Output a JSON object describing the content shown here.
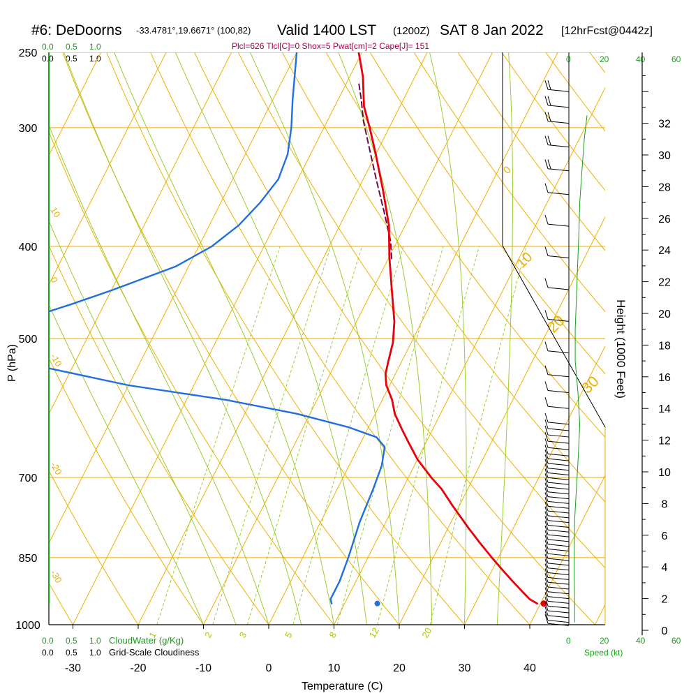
{
  "header": {
    "station": "#6: DeDoorns",
    "coords": "-33.4781°,19.6671° (100,82)",
    "valid": "Valid 1400 LST",
    "zulu": "(1200Z)",
    "date": "SAT 8 Jan 2022",
    "forecast": "[12hrFcst@0442z]",
    "params": "Plcl=626 Tlcl[C]=0 Shox=5 Pwat[cm]=2 Cape[J]= 151"
  },
  "colors": {
    "temperature": "#e8000b",
    "dewpoint": "#1f6fe0",
    "parcel": "#6a0a4a",
    "isobar": "#f0a800",
    "isotherm": "#f0b000",
    "dry_adiabat": "#f0b000",
    "moist_adiabat": "#9acd32",
    "mixing_ratio": "#9acd32",
    "cloud": "#1aa01a",
    "wind_speed": "#1aa01a"
  },
  "legends": {
    "cloud_scale_green": [
      "0.0",
      "0.5",
      "1.0"
    ],
    "cloud_scale_black": [
      "0.0",
      "0.5",
      "1.0"
    ],
    "cloudwater_label": "CloudWater (g/Kg)",
    "cloudiness_label": "Grid-Scale Cloudiness",
    "speed_scale_green_top": [
      "0",
      "20",
      "40",
      "60"
    ],
    "speed_scale_green_bottom": [
      "0",
      "20",
      "40",
      "60"
    ],
    "speed_label": "Speed (kt)"
  },
  "chart_data": {
    "type": "line",
    "subtype": "skew-t log-p sounding",
    "xlabel": "Temperature (C)",
    "ylabel": "P (hPa)",
    "y2label": "Height (1000 Feet)",
    "x_ticks": [
      "-30",
      "-20",
      "-10",
      "0",
      "10",
      "20",
      "30",
      "40"
    ],
    "x_tick_values": [
      -30,
      -20,
      -10,
      0,
      10,
      20,
      30,
      40
    ],
    "pressure_labels": [
      "250",
      "300",
      "400",
      "500",
      "700",
      "850",
      "1000"
    ],
    "pressure_levels": [
      250,
      300,
      400,
      500,
      700,
      850,
      1000
    ],
    "height_labels": [
      "0",
      "2",
      "4",
      "6",
      "8",
      "10",
      "12",
      "14",
      "16",
      "18",
      "20",
      "22",
      "24",
      "26",
      "28",
      "30",
      "32"
    ],
    "height_values": [
      0,
      2,
      4,
      6,
      8,
      10,
      12,
      14,
      16,
      18,
      20,
      22,
      24,
      26,
      28,
      30,
      32
    ],
    "isotherm_labels": [
      "10",
      "0",
      "-10",
      "-20",
      "-30"
    ],
    "adiabat_labels": [
      "0",
      "10",
      "20",
      "30"
    ],
    "mixing_ratio_labels": [
      "1",
      "2",
      "3",
      "5",
      "8",
      "12",
      "20"
    ],
    "mixing_ratio_values": [
      1,
      2,
      3,
      5,
      8,
      12,
      20
    ],
    "series": [
      {
        "name": "temperature",
        "points": [
          [
            39.5,
            950
          ],
          [
            38,
            940
          ],
          [
            36.5,
            925
          ],
          [
            34,
            900
          ],
          [
            32,
            880
          ],
          [
            29,
            850
          ],
          [
            26,
            820
          ],
          [
            23,
            790
          ],
          [
            19,
            750
          ],
          [
            16,
            720
          ],
          [
            13.5,
            700
          ],
          [
            10,
            670
          ],
          [
            7,
            640
          ],
          [
            5,
            620
          ],
          [
            3,
            600
          ],
          [
            1.5,
            580
          ],
          [
            -0.5,
            560
          ],
          [
            -1.5,
            545
          ],
          [
            -2,
            530
          ],
          [
            -2.8,
            505
          ],
          [
            -4.2,
            480
          ],
          [
            -7,
            445
          ],
          [
            -10,
            410
          ],
          [
            -12.5,
            380
          ],
          [
            -16,
            350
          ],
          [
            -20,
            320
          ],
          [
            -23,
            300
          ],
          [
            -25.5,
            285
          ],
          [
            -28,
            265
          ],
          [
            -30.5,
            250
          ]
        ]
      },
      {
        "name": "dewpoint",
        "points": [
          [
            8,
            950
          ],
          [
            7.5,
            940
          ],
          [
            7.5,
            920
          ],
          [
            7.5,
            900
          ],
          [
            7,
            850
          ],
          [
            6,
            780
          ],
          [
            5.5,
            720
          ],
          [
            5,
            680
          ],
          [
            4,
            650
          ],
          [
            2,
            635
          ],
          [
            -3,
            620
          ],
          [
            -12,
            600
          ],
          [
            -24,
            580
          ],
          [
            -40,
            560
          ],
          [
            -55,
            535
          ],
          [
            -62,
            520
          ],
          [
            -62,
            510
          ],
          [
            -67,
            490
          ],
          [
            -62,
            480
          ],
          [
            -55,
            460
          ],
          [
            -50,
            445
          ],
          [
            -42,
            420
          ],
          [
            -38,
            400
          ],
          [
            -35.5,
            380
          ],
          [
            -34,
            360
          ],
          [
            -33,
            340
          ],
          [
            -33.5,
            320
          ],
          [
            -35,
            300
          ],
          [
            -37,
            280
          ],
          [
            -40,
            250
          ]
        ]
      },
      {
        "name": "parcel",
        "points": [
          [
            -9.5,
            412
          ],
          [
            -11,
            395
          ],
          [
            -14,
            370
          ],
          [
            -18,
            340
          ],
          [
            -21.5,
            315
          ],
          [
            -24.5,
            295
          ],
          [
            -26.5,
            280
          ],
          [
            -28,
            270
          ]
        ]
      }
    ],
    "surface_points": {
      "temperature": [
        40.5,
        950
      ],
      "dewpoint": [
        15,
        950
      ]
    },
    "cloud_profile": [],
    "wind_speed_profile": [
      [
        3.2,
        0.5
      ],
      [
        3.2,
        1.5
      ],
      [
        3,
        3
      ],
      [
        3,
        5
      ],
      [
        3.2,
        7
      ],
      [
        4.2,
        9
      ],
      [
        5.2,
        11
      ],
      [
        6,
        13
      ],
      [
        5,
        15
      ],
      [
        3.5,
        17
      ],
      [
        3.5,
        19
      ],
      [
        4.2,
        21
      ],
      [
        4.8,
        23
      ],
      [
        5.5,
        25
      ],
      [
        6,
        27
      ],
      [
        7.2,
        29
      ],
      [
        8.5,
        31
      ],
      [
        10,
        32.5
      ]
    ],
    "barbs": [
      {
        "h": 0.3,
        "s": 10
      },
      {
        "h": 0.5,
        "s": 10
      },
      {
        "h": 0.8,
        "s": 10
      },
      {
        "h": 1.1,
        "s": 10
      },
      {
        "h": 1.4,
        "s": 10
      },
      {
        "h": 1.7,
        "s": 10
      },
      {
        "h": 2.0,
        "s": 10
      },
      {
        "h": 2.3,
        "s": 10
      },
      {
        "h": 2.6,
        "s": 10
      },
      {
        "h": 2.9,
        "s": 10
      },
      {
        "h": 3.2,
        "s": 10
      },
      {
        "h": 3.5,
        "s": 10
      },
      {
        "h": 3.8,
        "s": 10
      },
      {
        "h": 4.1,
        "s": 10
      },
      {
        "h": 4.4,
        "s": 10
      },
      {
        "h": 4.7,
        "s": 10
      },
      {
        "h": 5.0,
        "s": 10
      },
      {
        "h": 5.3,
        "s": 10
      },
      {
        "h": 5.6,
        "s": 10
      },
      {
        "h": 5.9,
        "s": 10
      },
      {
        "h": 6.2,
        "s": 10
      },
      {
        "h": 6.5,
        "s": 10
      },
      {
        "h": 6.8,
        "s": 10
      },
      {
        "h": 7.1,
        "s": 10
      },
      {
        "h": 7.4,
        "s": 10
      },
      {
        "h": 7.7,
        "s": 10
      },
      {
        "h": 8.0,
        "s": 10
      },
      {
        "h": 8.3,
        "s": 10
      },
      {
        "h": 8.6,
        "s": 10
      },
      {
        "h": 8.9,
        "s": 10
      },
      {
        "h": 9.2,
        "s": 10
      },
      {
        "h": 9.5,
        "s": 10
      },
      {
        "h": 9.8,
        "s": 10
      },
      {
        "h": 10.1,
        "s": 10
      },
      {
        "h": 10.4,
        "s": 10
      },
      {
        "h": 10.7,
        "s": 10
      },
      {
        "h": 11.0,
        "s": 10
      },
      {
        "h": 11.4,
        "s": 10
      },
      {
        "h": 11.8,
        "s": 10
      },
      {
        "h": 12.2,
        "s": 10
      },
      {
        "h": 12.6,
        "s": 10
      },
      {
        "h": 13.0,
        "s": 10
      },
      {
        "h": 14.0,
        "s": 10
      },
      {
        "h": 15.0,
        "s": 10
      },
      {
        "h": 16.0,
        "s": 10
      },
      {
        "h": 17.5,
        "s": 10
      },
      {
        "h": 19.5,
        "s": 10
      },
      {
        "h": 21.5,
        "s": 10
      },
      {
        "h": 23.5,
        "s": 10
      },
      {
        "h": 25.5,
        "s": 10
      },
      {
        "h": 27.5,
        "s": 10
      },
      {
        "h": 29.0,
        "s": 20
      },
      {
        "h": 30.5,
        "s": 20
      },
      {
        "h": 32.0,
        "s": 20
      },
      {
        "h": 33.0,
        "s": 20
      },
      {
        "h": 34.0,
        "s": 20
      }
    ]
  }
}
